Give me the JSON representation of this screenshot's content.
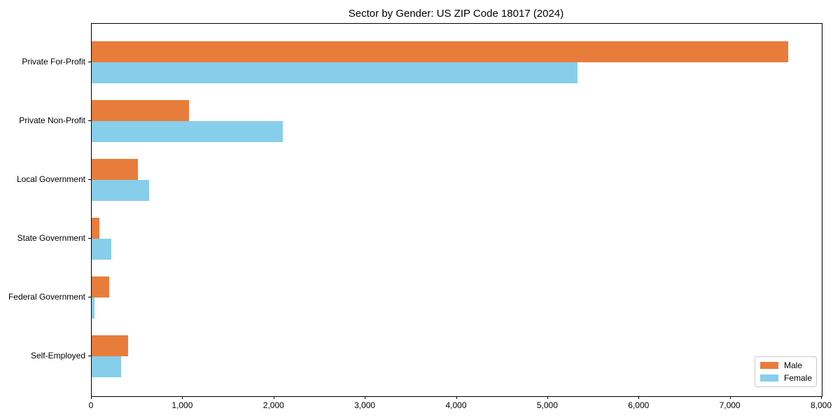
{
  "chart_data": {
    "type": "bar",
    "orientation": "horizontal",
    "title": "Sector by Gender: US ZIP Code 18017 (2024)",
    "categories": [
      "Private For-Profit",
      "Private Non-Profit",
      "Local Government",
      "State Government",
      "Federal Government",
      "Self-Employed"
    ],
    "series": [
      {
        "name": "Male",
        "color": "#e87d3b",
        "values": [
          7630,
          1065,
          505,
          85,
          190,
          400
        ]
      },
      {
        "name": "Female",
        "color": "#87ceeb",
        "values": [
          5320,
          2090,
          630,
          215,
          30,
          320
        ]
      }
    ],
    "xlabel": "",
    "ylabel": "",
    "xlim": [
      0,
      8000
    ],
    "x_ticks": [
      0,
      1000,
      2000,
      3000,
      4000,
      5000,
      6000,
      7000,
      8000
    ],
    "x_tick_labels": [
      "0",
      "1,000",
      "2,000",
      "3,000",
      "4,000",
      "5,000",
      "6,000",
      "7,000",
      "8,000"
    ],
    "grid": false,
    "legend_position": "lower right",
    "colors": {
      "axis": "#000000",
      "background": "#ffffff"
    }
  }
}
